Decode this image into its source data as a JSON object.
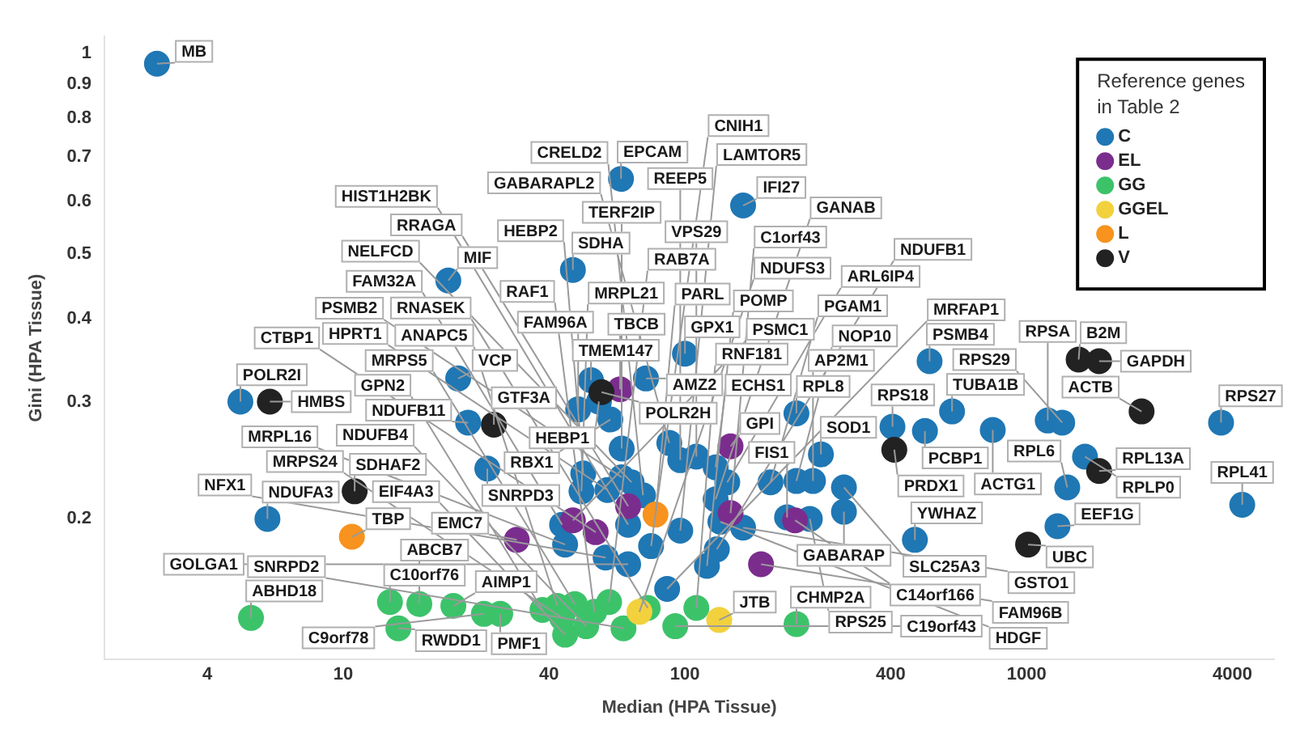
{
  "chart_data": {
    "type": "scatter",
    "xlabel": "Median (HPA Tissue)",
    "ylabel": "Gini (HPA Tissue)",
    "legend_title": "Reference genes in Table 2",
    "legend": "top right",
    "marker": "circle",
    "log": "xy",
    "xlim": [
      2,
      5300
    ],
    "ylim": [
      0.123,
      1.06
    ],
    "xticks": [
      4,
      10,
      40,
      100,
      400,
      1000,
      4000
    ],
    "yticks": [
      0.2,
      0.3,
      0.4,
      0.5,
      0.6,
      0.7,
      0.8,
      0.9,
      1
    ],
    "series": [
      {
        "name": "C",
        "color": "#1f77b4",
        "x": [
          2.85,
          65,
          148,
          20.3,
          47,
          5.0,
          6.0,
          21.7,
          23.2,
          26.4,
          53.1,
          76.9,
          48.7,
          60.5,
          65.3,
          50.4,
          49.8,
          59.3,
          65.3,
          69.8,
          75.4,
          43.7,
          44.6,
          58.6,
          68.2,
          68.2,
          79.6,
          96.9,
          88.7,
          96.9,
          108,
          123,
          133,
          123,
          127,
          148,
          124,
          116,
          178,
          212,
          237,
          199,
          232,
          212,
          100,
          520,
          605,
          405,
          504,
          796,
          1153,
          1271,
          1482,
          1315,
          1231,
          3707,
          4276,
          292,
          292,
          471,
          56,
          90,
          250
        ],
        "values": [
          0.965,
          0.648,
          0.591,
          0.456,
          0.473,
          0.3,
          0.2,
          0.325,
          0.279,
          0.238,
          0.323,
          0.325,
          0.292,
          0.282,
          0.255,
          0.234,
          0.22,
          0.221,
          0.231,
          0.227,
          0.217,
          0.196,
          0.183,
          0.175,
          0.171,
          0.196,
          0.182,
          0.192,
          0.157,
          0.245,
          0.248,
          0.239,
          0.227,
          0.214,
          0.198,
          0.194,
          0.18,
          0.17,
          0.227,
          0.228,
          0.228,
          0.201,
          0.2,
          0.288,
          0.354,
          0.345,
          0.29,
          0.275,
          0.271,
          0.272,
          0.281,
          0.279,
          0.248,
          0.223,
          0.195,
          0.279,
          0.21,
          0.223,
          0.205,
          0.186,
          0.3,
          0.26,
          0.25
        ]
      },
      {
        "name": "EL",
        "color": "#7b2d8e",
        "x": [
          64.6,
          136,
          32.2,
          47,
          54.8,
          68.2,
          136,
          167,
          210
        ],
        "values": [
          0.313,
          0.257,
          0.186,
          0.199,
          0.191,
          0.209,
          0.204,
          0.171,
          0.199
        ]
      },
      {
        "name": "GG",
        "color": "#3cc36a",
        "x": [
          5.37,
          13.7,
          16.7,
          14.5,
          21.0,
          25.8,
          28.8,
          38.3,
          42.3,
          47.6,
          54.3,
          43.7,
          44.6,
          51.4,
          66.1,
          77.8,
          108,
          212,
          93.7,
          60
        ],
        "values": [
          0.142,
          0.15,
          0.149,
          0.137,
          0.148,
          0.144,
          0.144,
          0.146,
          0.148,
          0.149,
          0.145,
          0.142,
          0.134,
          0.138,
          0.137,
          0.147,
          0.147,
          0.139,
          0.138,
          0.15
        ]
      },
      {
        "name": "GGEL",
        "color": "#f2d13d",
        "x": [
          73.6,
          126
        ],
        "values": [
          0.145,
          0.141
        ]
      },
      {
        "name": "L",
        "color": "#f7931e",
        "x": [
          10.6,
          82
        ],
        "values": [
          0.188,
          0.203
        ]
      },
      {
        "name": "V",
        "color": "#222222",
        "x": [
          6.1,
          10.8,
          27.6,
          57,
          410,
          1010,
          1420,
          1630,
          2170,
          1630
        ],
        "values": [
          0.3,
          0.22,
          0.277,
          0.31,
          0.254,
          0.183,
          0.347,
          0.345,
          0.29,
          0.236
        ]
      }
    ],
    "annotations": [
      {
        "text": "MB",
        "x": 2.85,
        "y": 0.965
      },
      {
        "text": "EPCAM",
        "x": 65,
        "y": 0.648
      },
      {
        "text": "IFI27",
        "x": 148,
        "y": 0.591
      },
      {
        "text": "MIF",
        "x": 20.3,
        "y": 0.456
      },
      {
        "text": "SDHA",
        "x": 47,
        "y": 0.473
      },
      {
        "text": "POLR2I",
        "x": 5.0,
        "y": 0.3
      },
      {
        "text": "NDUFA3",
        "x": 6.0,
        "y": 0.2
      },
      {
        "text": "VCP",
        "x": 21.7,
        "y": 0.325
      },
      {
        "text": "NDUFB11",
        "x": 23.2,
        "y": 0.279
      },
      {
        "text": "SNRPD3",
        "x": 26.4,
        "y": 0.238
      },
      {
        "text": "TMEM147",
        "x": 53.1,
        "y": 0.323
      },
      {
        "text": "AMZ2",
        "x": 76.9,
        "y": 0.325
      },
      {
        "text": "FAM96A",
        "x": 48.7,
        "y": 0.292
      },
      {
        "text": "RBX1",
        "x": 60.5,
        "y": 0.282
      },
      {
        "text": "TERF2IP",
        "x": 65.3,
        "y": 0.255
      },
      {
        "text": "HEBP2",
        "x": 50.4,
        "y": 0.234
      },
      {
        "text": "MRPL21",
        "x": 49.8,
        "y": 0.22
      },
      {
        "text": "HPRT1",
        "x": 59.3,
        "y": 0.221
      },
      {
        "text": "PSMB2",
        "x": 65.3,
        "y": 0.231
      },
      {
        "text": "NELFCD",
        "x": 69.8,
        "y": 0.227
      },
      {
        "text": "CRELD2",
        "x": 75.4,
        "y": 0.217
      },
      {
        "text": "FAM32A",
        "x": 43.7,
        "y": 0.196
      },
      {
        "text": "MRPL16",
        "x": 44.6,
        "y": 0.183
      },
      {
        "text": "NFX1",
        "x": 58.6,
        "y": 0.175
      },
      {
        "text": "GOLGA1",
        "x": 68.2,
        "y": 0.171
      },
      {
        "text": "HIST1H2BK",
        "x": 68.2,
        "y": 0.196
      },
      {
        "text": "CNIH1",
        "x": 79.6,
        "y": 0.182
      },
      {
        "text": "LAMTOR5",
        "x": 96.9,
        "y": 0.192
      },
      {
        "text": "MRFAP1",
        "x": 88.7,
        "y": 0.157
      },
      {
        "text": "REEP5",
        "x": 96.9,
        "y": 0.245
      },
      {
        "text": "VPS29",
        "x": 108,
        "y": 0.248
      },
      {
        "text": "ECHS1",
        "x": 123,
        "y": 0.239
      },
      {
        "text": "ARL6IP4",
        "x": 133,
        "y": 0.227
      },
      {
        "text": "GANAB",
        "x": 123,
        "y": 0.214
      },
      {
        "text": "HDGF",
        "x": 127,
        "y": 0.198
      },
      {
        "text": "GSTO1",
        "x": 148,
        "y": 0.194
      },
      {
        "text": "NDUFB1",
        "x": 124,
        "y": 0.18
      },
      {
        "text": "POMP",
        "x": 116,
        "y": 0.17
      },
      {
        "text": "PGAM1",
        "x": 178,
        "y": 0.227
      },
      {
        "text": "NOP10",
        "x": 212,
        "y": 0.228
      },
      {
        "text": "AP2M1",
        "x": 237,
        "y": 0.228
      },
      {
        "text": "FIS1",
        "x": 199,
        "y": 0.201
      },
      {
        "text": "RPS25",
        "x": 232,
        "y": 0.2
      },
      {
        "text": "RPL8",
        "x": 212,
        "y": 0.288
      },
      {
        "text": "GPX1",
        "x": 100,
        "y": 0.354
      },
      {
        "text": "PSMB4",
        "x": 520,
        "y": 0.345
      },
      {
        "text": "TUBA1B",
        "x": 605,
        "y": 0.29
      },
      {
        "text": "RPS18",
        "x": 405,
        "y": 0.275
      },
      {
        "text": "PCBP1",
        "x": 504,
        "y": 0.271
      },
      {
        "text": "ACTG1",
        "x": 796,
        "y": 0.272
      },
      {
        "text": "RPSA",
        "x": 1153,
        "y": 0.281
      },
      {
        "text": "RPS29",
        "x": 1271,
        "y": 0.279
      },
      {
        "text": "RPLP0",
        "x": 1482,
        "y": 0.248
      },
      {
        "text": "RPL6",
        "x": 1315,
        "y": 0.223
      },
      {
        "text": "EEF1G",
        "x": 1231,
        "y": 0.195
      },
      {
        "text": "RPS27",
        "x": 3707,
        "y": 0.279
      },
      {
        "text": "RPL41",
        "x": 4276,
        "y": 0.21
      },
      {
        "text": "SLC25A3",
        "x": 292,
        "y": 0.223
      },
      {
        "text": "GABARAP",
        "x": 292,
        "y": 0.205
      },
      {
        "text": "YWHAZ",
        "x": 471,
        "y": 0.186
      },
      {
        "text": "HEBP1",
        "x": 56,
        "y": 0.3
      },
      {
        "text": "GABARAPL2",
        "x": 90,
        "y": 0.26
      },
      {
        "text": "SOD1",
        "x": 250,
        "y": 0.25
      },
      {
        "text": "TBCB",
        "x": 64.6,
        "y": 0.313
      },
      {
        "text": "GPI",
        "x": 136,
        "y": 0.257
      },
      {
        "text": "EMC7",
        "x": 32.2,
        "y": 0.186
      },
      {
        "text": "PSMC1",
        "x": 47,
        "y": 0.199
      },
      {
        "text": "CTBP1",
        "x": 54.8,
        "y": 0.191
      },
      {
        "text": "RRAGA",
        "x": 68.2,
        "y": 0.209
      },
      {
        "text": "C1orf43",
        "x": 136,
        "y": 0.204
      },
      {
        "text": "FAM96B",
        "x": 167,
        "y": 0.171
      },
      {
        "text": "C14orf166",
        "x": 210,
        "y": 0.199
      },
      {
        "text": "ABHD18",
        "x": 5.37,
        "y": 0.142
      },
      {
        "text": "C10orf76",
        "x": 13.7,
        "y": 0.15
      },
      {
        "text": "ABCB7",
        "x": 16.7,
        "y": 0.149
      },
      {
        "text": "RWDD1",
        "x": 14.5,
        "y": 0.137
      },
      {
        "text": "AIMP1",
        "x": 21.0,
        "y": 0.148
      },
      {
        "text": "C9orf78",
        "x": 25.8,
        "y": 0.144
      },
      {
        "text": "PMF1",
        "x": 28.8,
        "y": 0.144
      },
      {
        "text": "GPN2",
        "x": 38.3,
        "y": 0.146
      },
      {
        "text": "ANAPC5",
        "x": 42.3,
        "y": 0.148
      },
      {
        "text": "MRPS5",
        "x": 47.6,
        "y": 0.149
      },
      {
        "text": "RAF1",
        "x": 54.3,
        "y": 0.145
      },
      {
        "text": "MRPS24",
        "x": 43.7,
        "y": 0.142
      },
      {
        "text": "EIF4A3",
        "x": 44.6,
        "y": 0.134
      },
      {
        "text": "NDUFB4",
        "x": 51.4,
        "y": 0.138
      },
      {
        "text": "SNRPD2",
        "x": 66.1,
        "y": 0.137
      },
      {
        "text": "RNASEK",
        "x": 77.8,
        "y": 0.147
      },
      {
        "text": "RNF181",
        "x": 108,
        "y": 0.147
      },
      {
        "text": "CHMP2A",
        "x": 212,
        "y": 0.139
      },
      {
        "text": "C19orf43",
        "x": 93.7,
        "y": 0.138
      },
      {
        "text": "RAB7A",
        "x": 60,
        "y": 0.15
      },
      {
        "text": "NDUFS3",
        "x": 73.6,
        "y": 0.145
      },
      {
        "text": "JTB",
        "x": 126,
        "y": 0.141
      },
      {
        "text": "TBP",
        "x": 10.6,
        "y": 0.188
      },
      {
        "text": "PARL",
        "x": 82,
        "y": 0.203
      },
      {
        "text": "HMBS",
        "x": 6.1,
        "y": 0.3
      },
      {
        "text": "SDHAF2",
        "x": 10.8,
        "y": 0.22
      },
      {
        "text": "GTF3A",
        "x": 27.6,
        "y": 0.277
      },
      {
        "text": "POLR2H",
        "x": 57,
        "y": 0.31
      },
      {
        "text": "PRDX1",
        "x": 410,
        "y": 0.254
      },
      {
        "text": "UBC",
        "x": 1010,
        "y": 0.183
      },
      {
        "text": "B2M",
        "x": 1420,
        "y": 0.347
      },
      {
        "text": "GAPDH",
        "x": 1630,
        "y": 0.345
      },
      {
        "text": "ACTB",
        "x": 2170,
        "y": 0.29
      },
      {
        "text": "RPL13A",
        "x": 1630,
        "y": 0.236
      }
    ]
  }
}
